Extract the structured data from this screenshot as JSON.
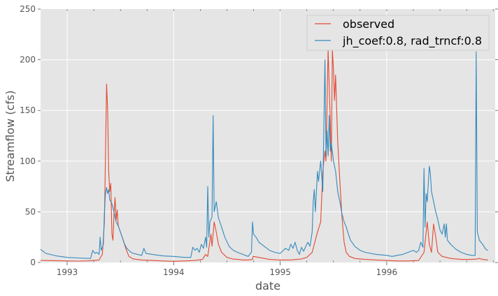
{
  "chart_data": {
    "type": "line",
    "title": "",
    "xlabel": "date",
    "ylabel": "Streamflow (cfs)",
    "ylim": [
      0,
      250
    ],
    "xlim": [
      "1992-10",
      "1996-12"
    ],
    "yticks": [
      "0",
      "50",
      "100",
      "150",
      "200",
      "250"
    ],
    "xticks": [
      "1993",
      "1994",
      "1995",
      "1996"
    ],
    "grid": true,
    "legend_position": "upper right",
    "style": "ggplot",
    "colors": {
      "plot_bg": "#e5e5e5",
      "grid": "#ffffff",
      "observed": "#e24a33",
      "simulated": "#348abd",
      "text": "#555555"
    },
    "x_units": "years since 1993-01-01",
    "series": [
      {
        "name": "observed",
        "color": "#e24a33",
        "points": [
          [
            -0.25,
            2
          ],
          [
            -0.1,
            1.8
          ],
          [
            0.0,
            1.5
          ],
          [
            0.1,
            1.4
          ],
          [
            0.2,
            1.6
          ],
          [
            0.3,
            2.5
          ],
          [
            0.33,
            8
          ],
          [
            0.35,
            40
          ],
          [
            0.37,
            176
          ],
          [
            0.38,
            150
          ],
          [
            0.39,
            90
          ],
          [
            0.4,
            70
          ],
          [
            0.41,
            78
          ],
          [
            0.42,
            28
          ],
          [
            0.43,
            22
          ],
          [
            0.44,
            48
          ],
          [
            0.45,
            64
          ],
          [
            0.46,
            42
          ],
          [
            0.47,
            52
          ],
          [
            0.48,
            36
          ],
          [
            0.5,
            30
          ],
          [
            0.52,
            24
          ],
          [
            0.55,
            14
          ],
          [
            0.58,
            6
          ],
          [
            0.62,
            3.5
          ],
          [
            0.7,
            2.5
          ],
          [
            0.8,
            2
          ],
          [
            0.9,
            1.5
          ],
          [
            1.0,
            1.2
          ],
          [
            1.1,
            1.5
          ],
          [
            1.2,
            2
          ],
          [
            1.27,
            3
          ],
          [
            1.3,
            8
          ],
          [
            1.32,
            6
          ],
          [
            1.35,
            28
          ],
          [
            1.36,
            16
          ],
          [
            1.38,
            40
          ],
          [
            1.4,
            30
          ],
          [
            1.42,
            18
          ],
          [
            1.45,
            10
          ],
          [
            1.5,
            5
          ],
          [
            1.55,
            3.5
          ],
          [
            1.6,
            3
          ],
          [
            1.65,
            2.5
          ],
          [
            1.7,
            2.5
          ],
          [
            1.74,
            3
          ],
          [
            1.745,
            6
          ],
          [
            1.8,
            5
          ],
          [
            1.85,
            4
          ],
          [
            1.9,
            3
          ],
          [
            2.0,
            2.5
          ],
          [
            2.1,
            2.5
          ],
          [
            2.2,
            3.5
          ],
          [
            2.25,
            5
          ],
          [
            2.3,
            10
          ],
          [
            2.35,
            30
          ],
          [
            2.38,
            40
          ],
          [
            2.4,
            90
          ],
          [
            2.42,
            110
          ],
          [
            2.43,
            100
          ],
          [
            2.45,
            210
          ],
          [
            2.47,
            140
          ],
          [
            2.48,
            100
          ],
          [
            2.49,
            210
          ],
          [
            2.5,
            190
          ],
          [
            2.51,
            160
          ],
          [
            2.52,
            185
          ],
          [
            2.54,
            120
          ],
          [
            2.56,
            80
          ],
          [
            2.58,
            45
          ],
          [
            2.6,
            20
          ],
          [
            2.62,
            10
          ],
          [
            2.65,
            6
          ],
          [
            2.7,
            4
          ],
          [
            2.8,
            3
          ],
          [
            2.9,
            2.5
          ],
          [
            3.0,
            2
          ],
          [
            3.1,
            1.5
          ],
          [
            3.2,
            1.5
          ],
          [
            3.3,
            2
          ],
          [
            3.35,
            10
          ],
          [
            3.38,
            40
          ],
          [
            3.4,
            18
          ],
          [
            3.42,
            10
          ],
          [
            3.44,
            38
          ],
          [
            3.46,
            25
          ],
          [
            3.48,
            10
          ],
          [
            3.52,
            6
          ],
          [
            3.6,
            4
          ],
          [
            3.7,
            3
          ],
          [
            3.8,
            3
          ],
          [
            3.85,
            3.5
          ],
          [
            3.87,
            4
          ],
          [
            3.9,
            3
          ],
          [
            3.95,
            2.5
          ]
        ]
      },
      {
        "name": "jh_coef:0.8, rad_trncf:0.8",
        "color": "#348abd",
        "points": [
          [
            -0.25,
            13
          ],
          [
            -0.2,
            9
          ],
          [
            -0.1,
            6.5
          ],
          [
            0.0,
            5
          ],
          [
            0.1,
            4.5
          ],
          [
            0.2,
            4
          ],
          [
            0.22,
            4
          ],
          [
            0.24,
            12
          ],
          [
            0.26,
            9
          ],
          [
            0.28,
            10
          ],
          [
            0.3,
            8
          ],
          [
            0.31,
            25
          ],
          [
            0.32,
            12
          ],
          [
            0.34,
            18
          ],
          [
            0.35,
            50
          ],
          [
            0.36,
            68
          ],
          [
            0.37,
            74
          ],
          [
            0.38,
            68
          ],
          [
            0.39,
            72
          ],
          [
            0.4,
            62
          ],
          [
            0.42,
            58
          ],
          [
            0.44,
            50
          ],
          [
            0.46,
            40
          ],
          [
            0.48,
            36
          ],
          [
            0.5,
            30
          ],
          [
            0.52,
            24
          ],
          [
            0.54,
            18
          ],
          [
            0.56,
            14
          ],
          [
            0.58,
            12
          ],
          [
            0.6,
            10
          ],
          [
            0.62,
            9
          ],
          [
            0.7,
            7
          ],
          [
            0.72,
            14
          ],
          [
            0.74,
            9
          ],
          [
            0.8,
            8
          ],
          [
            0.9,
            6.5
          ],
          [
            1.0,
            6
          ],
          [
            1.1,
            5
          ],
          [
            1.16,
            5
          ],
          [
            1.18,
            15
          ],
          [
            1.2,
            12
          ],
          [
            1.22,
            14
          ],
          [
            1.24,
            10
          ],
          [
            1.26,
            18
          ],
          [
            1.28,
            14
          ],
          [
            1.3,
            25
          ],
          [
            1.31,
            15
          ],
          [
            1.32,
            75
          ],
          [
            1.33,
            25
          ],
          [
            1.34,
            40
          ],
          [
            1.36,
            45
          ],
          [
            1.37,
            145
          ],
          [
            1.38,
            50
          ],
          [
            1.4,
            60
          ],
          [
            1.42,
            44
          ],
          [
            1.45,
            35
          ],
          [
            1.48,
            25
          ],
          [
            1.52,
            16
          ],
          [
            1.56,
            12
          ],
          [
            1.6,
            10
          ],
          [
            1.65,
            8
          ],
          [
            1.7,
            6
          ],
          [
            1.72,
            9
          ],
          [
            1.73,
            10
          ],
          [
            1.74,
            40
          ],
          [
            1.75,
            28
          ],
          [
            1.78,
            24
          ],
          [
            1.8,
            20
          ],
          [
            1.85,
            16
          ],
          [
            1.9,
            12
          ],
          [
            1.95,
            10
          ],
          [
            2.0,
            9
          ],
          [
            2.05,
            14
          ],
          [
            2.08,
            12
          ],
          [
            2.1,
            18
          ],
          [
            2.12,
            14
          ],
          [
            2.14,
            20
          ],
          [
            2.16,
            12
          ],
          [
            2.18,
            8
          ],
          [
            2.2,
            15
          ],
          [
            2.22,
            11
          ],
          [
            2.24,
            16
          ],
          [
            2.26,
            20
          ],
          [
            2.28,
            16
          ],
          [
            2.3,
            30
          ],
          [
            2.31,
            60
          ],
          [
            2.32,
            72
          ],
          [
            2.33,
            50
          ],
          [
            2.35,
            90
          ],
          [
            2.36,
            80
          ],
          [
            2.38,
            100
          ],
          [
            2.4,
            70
          ],
          [
            2.42,
            200
          ],
          [
            2.43,
            105
          ],
          [
            2.44,
            130
          ],
          [
            2.45,
            105
          ],
          [
            2.46,
            145
          ],
          [
            2.47,
            110
          ],
          [
            2.48,
            118
          ],
          [
            2.5,
            100
          ],
          [
            2.52,
            90
          ],
          [
            2.54,
            70
          ],
          [
            2.56,
            60
          ],
          [
            2.58,
            48
          ],
          [
            2.6,
            40
          ],
          [
            2.62,
            35
          ],
          [
            2.64,
            28
          ],
          [
            2.66,
            22
          ],
          [
            2.7,
            16
          ],
          [
            2.75,
            12
          ],
          [
            2.8,
            10
          ],
          [
            2.9,
            8
          ],
          [
            3.0,
            7
          ],
          [
            3.05,
            6
          ],
          [
            3.1,
            7
          ],
          [
            3.15,
            8
          ],
          [
            3.2,
            10
          ],
          [
            3.25,
            12
          ],
          [
            3.28,
            10
          ],
          [
            3.3,
            12
          ],
          [
            3.32,
            20
          ],
          [
            3.34,
            15
          ],
          [
            3.35,
            93
          ],
          [
            3.36,
            35
          ],
          [
            3.37,
            68
          ],
          [
            3.38,
            60
          ],
          [
            3.4,
            95
          ],
          [
            3.41,
            88
          ],
          [
            3.42,
            70
          ],
          [
            3.44,
            60
          ],
          [
            3.46,
            50
          ],
          [
            3.48,
            42
          ],
          [
            3.5,
            32
          ],
          [
            3.52,
            28
          ],
          [
            3.54,
            38
          ],
          [
            3.55,
            25
          ],
          [
            3.56,
            38
          ],
          [
            3.57,
            22
          ],
          [
            3.6,
            18
          ],
          [
            3.65,
            13
          ],
          [
            3.7,
            10
          ],
          [
            3.75,
            8
          ],
          [
            3.8,
            7
          ],
          [
            3.83,
            7
          ],
          [
            3.84,
            208
          ],
          [
            3.85,
            30
          ],
          [
            3.87,
            22
          ],
          [
            3.9,
            18
          ],
          [
            3.93,
            13
          ],
          [
            3.95,
            12
          ]
        ]
      }
    ]
  },
  "legend": {
    "items": [
      {
        "label": "observed",
        "color": "#e24a33"
      },
      {
        "label": "jh_coef:0.8, rad_trncf:0.8",
        "color": "#348abd"
      }
    ]
  },
  "axes": {
    "xlabel": "date",
    "ylabel": "Streamflow (cfs)"
  }
}
